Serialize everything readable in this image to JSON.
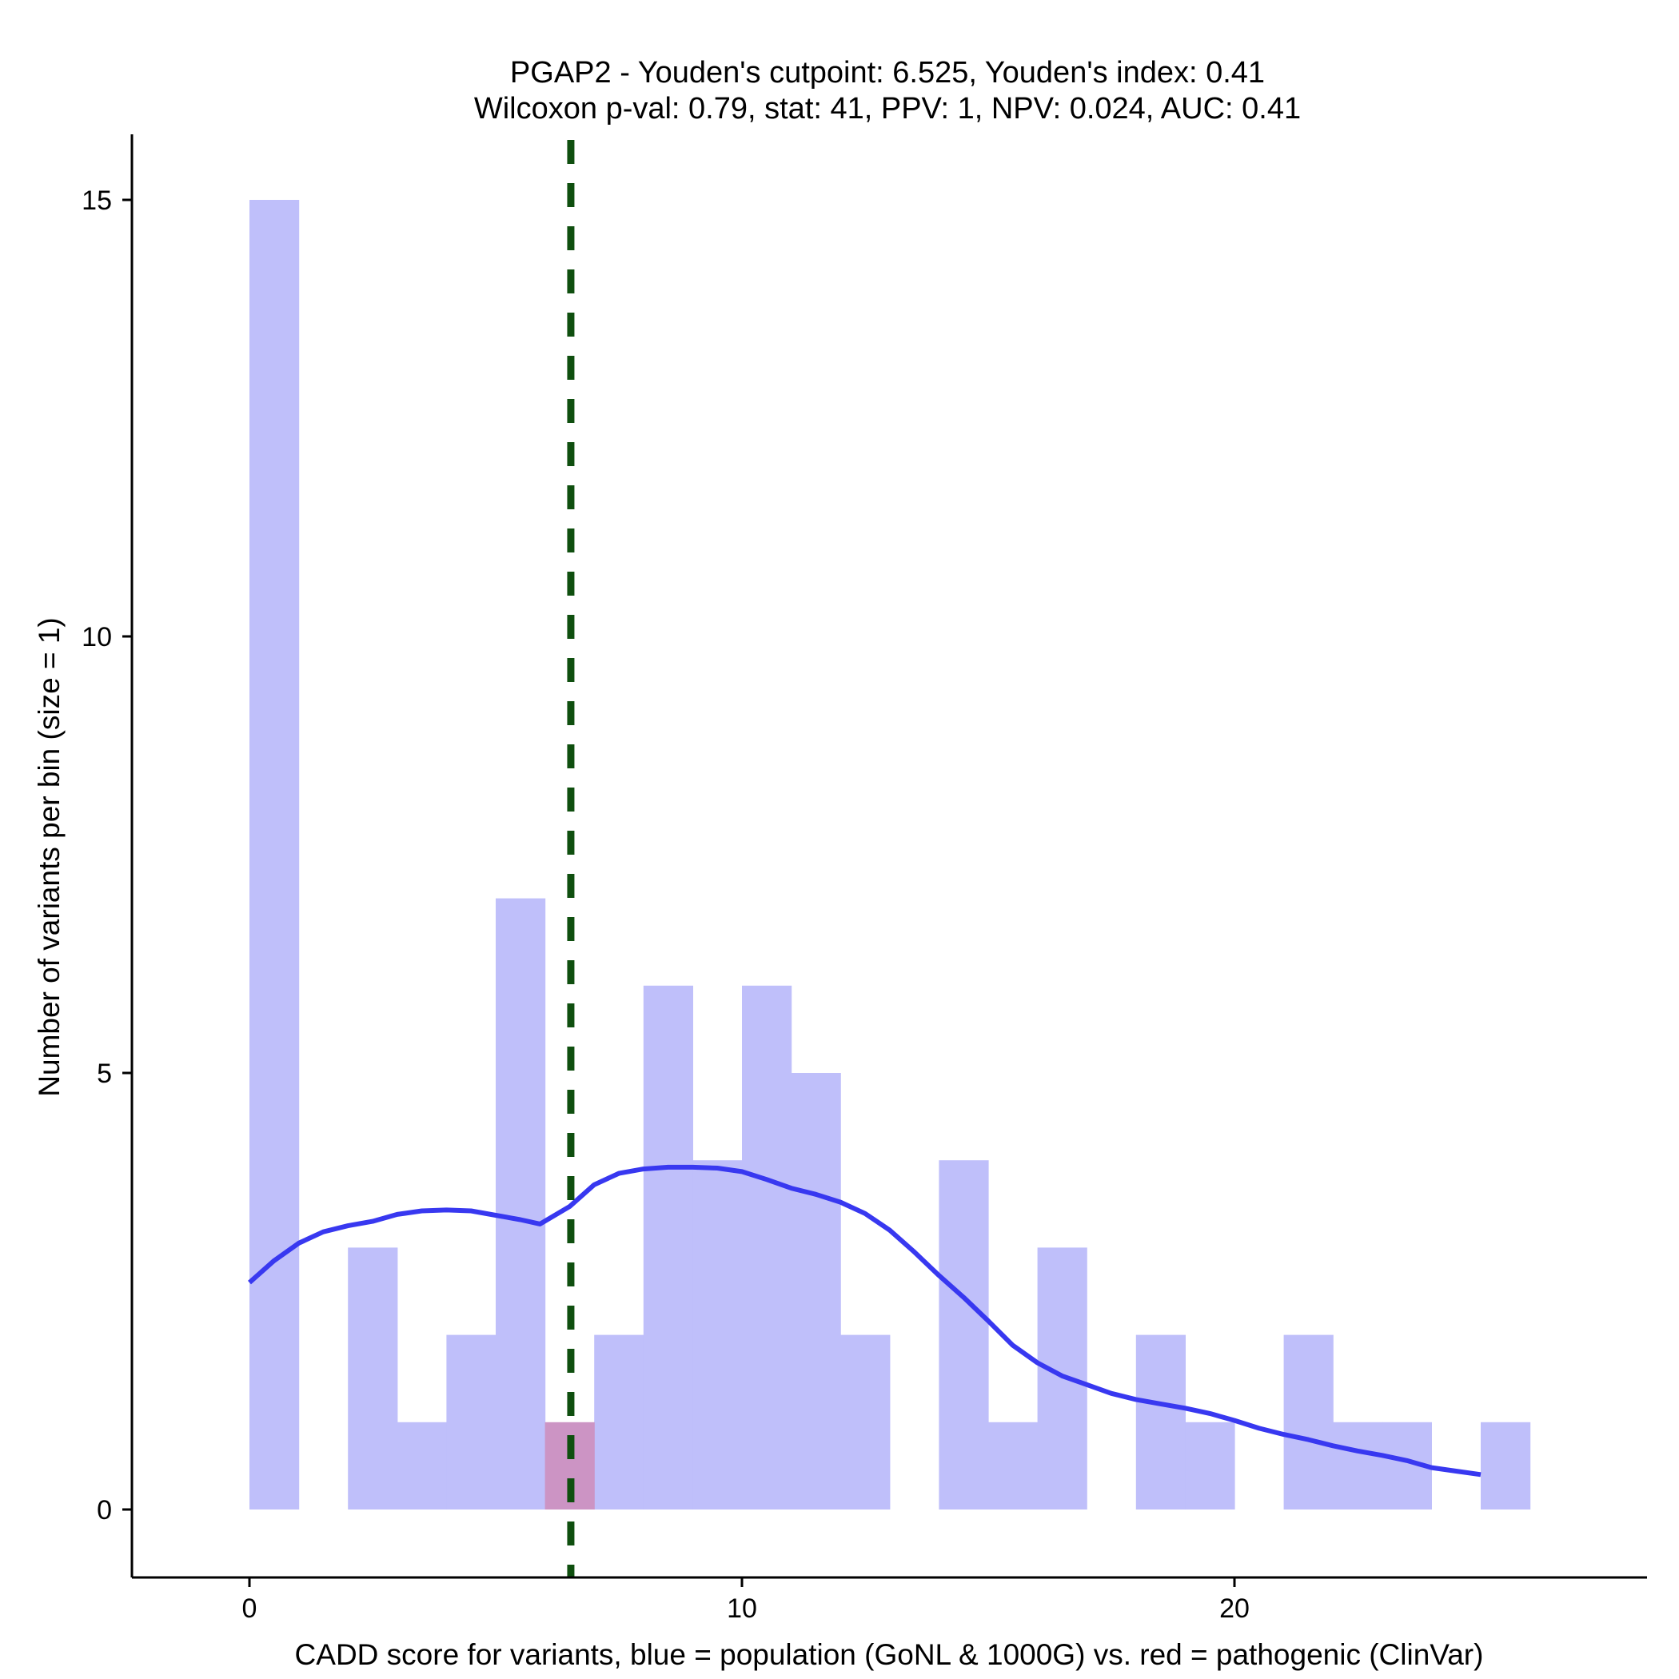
{
  "chart_data": {
    "type": "bar",
    "title_line1": "PGAP2 - Youden's cutpoint: 6.525, Youden's index: 0.41",
    "title_line2": "Wilcoxon p-val: 0.79, stat: 41, PPV: 1, NPV: 0.024, AUC: 0.41",
    "xlabel": "CADD score for variants, blue = population (GoNL & 1000G) vs. red = pathogenic (ClinVar)",
    "ylabel": "Number of variants per bin (size = 1)",
    "xlim": [
      -2.4,
      28.4
    ],
    "ylim": [
      -0.75,
      15.75
    ],
    "x_ticks": [
      0,
      10,
      20
    ],
    "y_ticks": [
      0,
      5,
      10,
      15
    ],
    "bin_width": 1,
    "cutpoint": 6.525,
    "series": [
      {
        "name": "population (GoNL & 1000G)",
        "color": "#bfbffa",
        "bin_starts": [
          0,
          1,
          2,
          3,
          4,
          5,
          6,
          7,
          8,
          9,
          10,
          11,
          12,
          13,
          14,
          15,
          16,
          17,
          18,
          19,
          20,
          21,
          22,
          23,
          24,
          25
        ],
        "values": [
          15,
          0,
          3,
          1,
          2,
          7,
          0,
          2,
          6,
          4,
          6,
          5,
          2,
          0,
          4,
          1,
          3,
          0,
          2,
          1,
          0,
          2,
          1,
          1,
          0,
          1
        ]
      },
      {
        "name": "pathogenic (ClinVar)",
        "color": "#cc94c4",
        "bin_starts": [
          6
        ],
        "values": [
          1
        ]
      }
    ],
    "density_curve": {
      "color": "#3838f0",
      "x": [
        0,
        0.5,
        1,
        1.5,
        2,
        2.5,
        3,
        3.5,
        4,
        4.5,
        5,
        5.5,
        5.9,
        6.5,
        7,
        7.5,
        8,
        8.5,
        9,
        9.5,
        10,
        10.5,
        11,
        11.5,
        12,
        12.5,
        13,
        13.5,
        14,
        14.5,
        15,
        15.5,
        16,
        16.5,
        17,
        17.5,
        18,
        18.5,
        19,
        19.5,
        20,
        20.5,
        21,
        21.5,
        22,
        22.5,
        23,
        23.5,
        24,
        24.5,
        25
      ],
      "y": [
        2.6,
        2.85,
        3.05,
        3.18,
        3.25,
        3.3,
        3.38,
        3.42,
        3.43,
        3.42,
        3.37,
        3.32,
        3.27,
        3.47,
        3.72,
        3.85,
        3.9,
        3.92,
        3.92,
        3.91,
        3.87,
        3.78,
        3.68,
        3.61,
        3.52,
        3.39,
        3.2,
        2.95,
        2.68,
        2.43,
        2.16,
        1.88,
        1.68,
        1.53,
        1.43,
        1.33,
        1.26,
        1.21,
        1.16,
        1.1,
        1.02,
        0.93,
        0.86,
        0.8,
        0.73,
        0.67,
        0.62,
        0.56,
        0.48,
        0.44,
        0.4
      ]
    },
    "legend": "none",
    "grid": false
  }
}
